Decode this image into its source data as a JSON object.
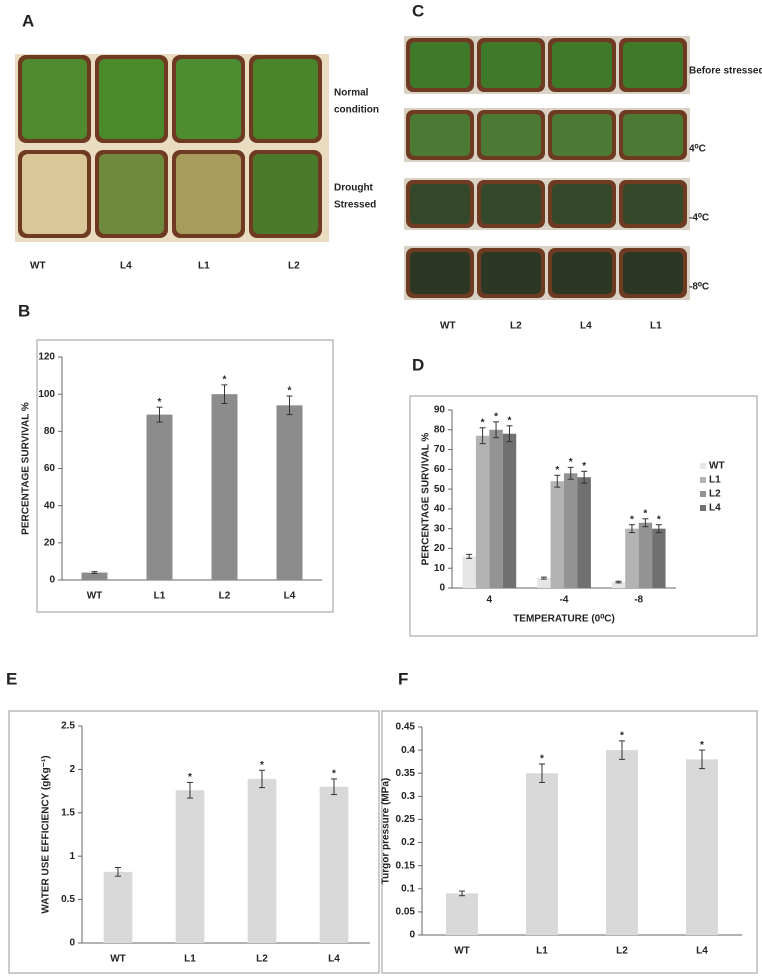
{
  "photo_panels": [
    {
      "label": "A",
      "row_labels": [
        [
          "Normal",
          "condition"
        ],
        [
          "Drought",
          "Stressed"
        ]
      ],
      "column_labels": [
        "WT",
        "L4",
        "L1",
        "L2"
      ]
    },
    {
      "label": "C",
      "row_labels": [
        "Before stressed",
        "4⁰C",
        "-4⁰C",
        "-8⁰C"
      ],
      "column_labels": [
        "WT",
        "L2",
        "L4",
        "L1"
      ]
    }
  ],
  "chart_data": [
    {
      "type": "bar",
      "panel": "B",
      "ylabel": "PERCENTAGE SURVIVAL %",
      "categories": [
        "WT",
        "L1",
        "L2",
        "L4"
      ],
      "values": [
        4,
        89,
        100,
        94
      ],
      "errors": [
        0.5,
        4,
        5,
        5
      ],
      "significance": [
        null,
        "*",
        "*",
        "*"
      ],
      "color": "#8c8c8c",
      "ylim": [
        0,
        120
      ],
      "yticks": [
        0,
        20,
        40,
        60,
        80,
        100,
        120
      ]
    },
    {
      "type": "bar",
      "panel": "D",
      "ylabel": "PERCENTAGE SURVIVAL %",
      "xlabel": "TEMPERATURE (0⁰C)",
      "categories": [
        "4",
        "-4",
        "-8"
      ],
      "series": [
        {
          "name": "WT",
          "color": "#e6e6e6",
          "values": [
            16,
            5,
            3
          ],
          "errors": [
            1,
            0.5,
            0.4
          ]
        },
        {
          "name": "L1",
          "color": "#b3b3b3",
          "values": [
            77,
            54,
            30
          ],
          "errors": [
            4,
            3,
            2
          ],
          "significance": [
            "*",
            "*",
            "*"
          ]
        },
        {
          "name": "L2",
          "color": "#939393",
          "values": [
            80,
            58,
            33
          ],
          "errors": [
            4,
            3,
            2
          ],
          "significance": [
            "*",
            "*",
            "*"
          ]
        },
        {
          "name": "L4",
          "color": "#707070",
          "values": [
            78,
            56,
            30
          ],
          "errors": [
            4,
            3,
            2
          ],
          "significance": [
            "*",
            "*",
            "*"
          ]
        }
      ],
      "ylim": [
        0,
        90
      ],
      "yticks": [
        0,
        10,
        20,
        30,
        40,
        50,
        60,
        70,
        80,
        90
      ],
      "legend": "right"
    },
    {
      "type": "bar",
      "panel": "E",
      "ylabel": "WATER USE EFFICIENCY (gKg⁻¹)",
      "categories": [
        "WT",
        "L1",
        "L2",
        "L4"
      ],
      "values": [
        0.82,
        1.76,
        1.89,
        1.8
      ],
      "errors": [
        0.05,
        0.09,
        0.1,
        0.09
      ],
      "significance": [
        null,
        "*",
        "*",
        "*"
      ],
      "color": "#d9d9d9",
      "ylim": [
        0,
        2.5
      ],
      "yticks": [
        0,
        0.5,
        1,
        1.5,
        2,
        2.5
      ]
    },
    {
      "type": "bar",
      "panel": "F",
      "ylabel": "Turgor pressure (MPa)",
      "categories": [
        "WT",
        "L1",
        "L2",
        "L4"
      ],
      "values": [
        0.09,
        0.35,
        0.4,
        0.38
      ],
      "errors": [
        0.005,
        0.02,
        0.02,
        0.02
      ],
      "significance": [
        null,
        "*",
        "*",
        "*"
      ],
      "color": "#d9d9d9",
      "ylim": [
        0,
        0.45
      ],
      "yticks": [
        0,
        0.05,
        0.1,
        0.15,
        0.2,
        0.25,
        0.3,
        0.35,
        0.4,
        0.45
      ]
    }
  ]
}
